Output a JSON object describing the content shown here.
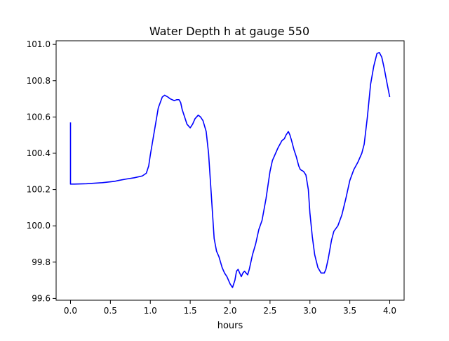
{
  "chart_data": {
    "type": "line",
    "title": "Water Depth h at gauge 550",
    "xlabel": "hours",
    "ylabel": "",
    "xlim": [
      -0.18,
      4.18
    ],
    "ylim": [
      99.59,
      101.02
    ],
    "grid": false,
    "colors": {
      "line": "#0000ff",
      "axes": "#000000",
      "background": "#ffffff"
    },
    "x_ticks": [
      0.0,
      0.5,
      1.0,
      1.5,
      2.0,
      2.5,
      3.0,
      3.5,
      4.0
    ],
    "x_tick_labels": [
      "0.0",
      "0.5",
      "1.0",
      "1.5",
      "2.0",
      "2.5",
      "3.0",
      "3.5",
      "4.0"
    ],
    "y_ticks": [
      99.6,
      99.8,
      100.0,
      100.2,
      100.4,
      100.6,
      100.8,
      101.0
    ],
    "y_tick_labels": [
      "99.6",
      "99.8",
      "100.0",
      "100.2",
      "100.4",
      "100.6",
      "100.8",
      "101.0"
    ],
    "series": [
      {
        "name": "",
        "x": [
          0.0,
          0.0,
          0.05,
          0.2,
          0.4,
          0.55,
          0.6,
          0.7,
          0.8,
          0.9,
          0.95,
          0.98,
          1.0,
          1.05,
          1.1,
          1.15,
          1.18,
          1.22,
          1.25,
          1.3,
          1.33,
          1.36,
          1.38,
          1.4,
          1.43,
          1.46,
          1.5,
          1.53,
          1.56,
          1.6,
          1.63,
          1.66,
          1.7,
          1.73,
          1.76,
          1.8,
          1.83,
          1.86,
          1.9,
          1.93,
          1.96,
          2.0,
          2.03,
          2.06,
          2.08,
          2.1,
          2.12,
          2.14,
          2.16,
          2.18,
          2.2,
          2.22,
          2.24,
          2.26,
          2.28,
          2.32,
          2.36,
          2.4,
          2.45,
          2.5,
          2.53,
          2.57,
          2.6,
          2.65,
          2.68,
          2.7,
          2.73,
          2.75,
          2.77,
          2.8,
          2.83,
          2.86,
          2.88,
          2.92,
          2.95,
          2.98,
          3.0,
          3.03,
          3.06,
          3.1,
          3.14,
          3.18,
          3.2,
          3.23,
          3.27,
          3.3,
          3.35,
          3.4,
          3.45,
          3.5,
          3.55,
          3.6,
          3.65,
          3.68,
          3.72,
          3.76,
          3.8,
          3.84,
          3.87,
          3.9,
          3.93,
          3.96,
          4.0
        ],
        "y": [
          100.57,
          100.23,
          100.23,
          100.232,
          100.238,
          100.245,
          100.25,
          100.258,
          100.265,
          100.275,
          100.29,
          100.33,
          100.39,
          100.52,
          100.65,
          100.71,
          100.72,
          100.71,
          100.7,
          100.69,
          100.695,
          100.695,
          100.68,
          100.64,
          100.6,
          100.56,
          100.54,
          100.56,
          100.59,
          100.61,
          100.6,
          100.58,
          100.52,
          100.4,
          100.2,
          99.93,
          99.86,
          99.83,
          99.77,
          99.74,
          99.72,
          99.68,
          99.66,
          99.7,
          99.75,
          99.76,
          99.74,
          99.72,
          99.74,
          99.75,
          99.74,
          99.73,
          99.76,
          99.8,
          99.84,
          99.9,
          99.98,
          100.03,
          100.15,
          100.3,
          100.36,
          100.4,
          100.43,
          100.47,
          100.48,
          100.5,
          100.52,
          100.5,
          100.47,
          100.42,
          100.38,
          100.33,
          100.31,
          100.3,
          100.28,
          100.2,
          100.07,
          99.94,
          99.84,
          99.77,
          99.74,
          99.74,
          99.76,
          99.82,
          99.92,
          99.97,
          100.0,
          100.06,
          100.15,
          100.25,
          100.31,
          100.35,
          100.4,
          100.45,
          100.6,
          100.78,
          100.88,
          100.95,
          100.955,
          100.93,
          100.87,
          100.8,
          100.71
        ]
      }
    ]
  }
}
